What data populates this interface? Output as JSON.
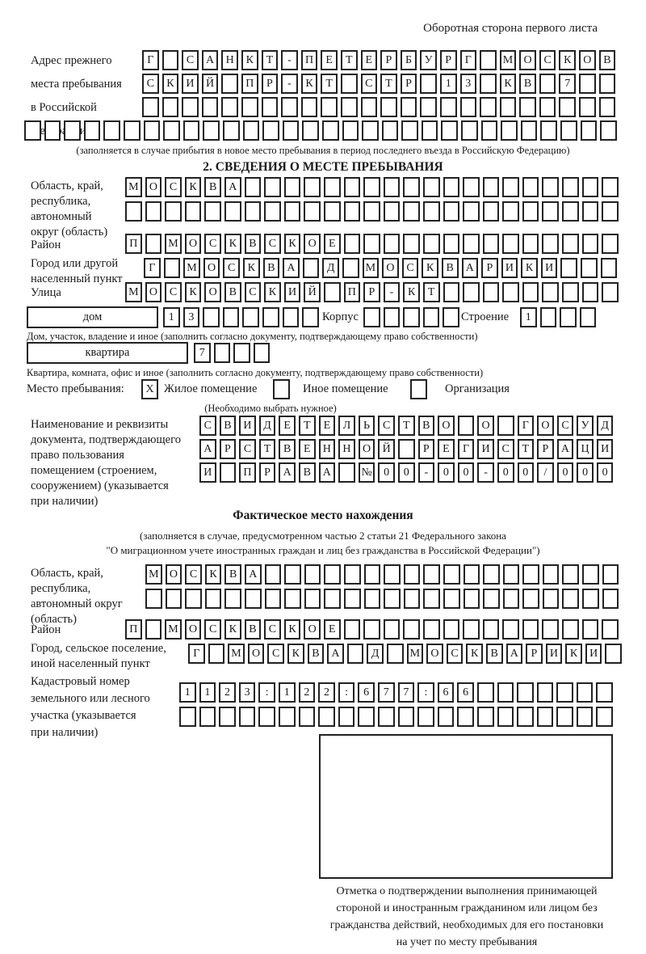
{
  "page": {
    "header_note": "Оборотная сторона первого листа"
  },
  "prev_address": {
    "label": [
      "Адрес прежнего",
      "места пребывания",
      "в Российской",
      "Федерации"
    ],
    "row1": [
      "Г",
      "",
      "С",
      "А",
      "Н",
      "К",
      "Т",
      "-",
      "П",
      "Е",
      "Т",
      "Е",
      "Р",
      "Б",
      "У",
      "Р",
      "Г",
      "",
      "М",
      "О",
      "С",
      "К",
      "О",
      "В"
    ],
    "row2": [
      "С",
      "К",
      "И",
      "Й",
      "",
      "П",
      "Р",
      "-",
      "К",
      "Т",
      "",
      "С",
      "Т",
      "Р",
      "",
      "1",
      "3",
      "",
      "К",
      "В",
      "",
      "7",
      "",
      ""
    ],
    "row3": [
      "",
      "",
      "",
      "",
      "",
      "",
      "",
      "",
      "",
      "",
      "",
      "",
      "",
      "",
      "",
      "",
      "",
      "",
      "",
      "",
      "",
      "",
      "",
      ""
    ],
    "row4": [
      "",
      "",
      "",
      "",
      "",
      "",
      "",
      "",
      "",
      "",
      "",
      "",
      "",
      "",
      "",
      "",
      "",
      "",
      "",
      "",
      "",
      "",
      "",
      "",
      "",
      "",
      "",
      "",
      "",
      ""
    ],
    "note": "(заполняется в случае прибытия в новое место пребывания в период последнего въезда в Российскую Федерацию)"
  },
  "section2": {
    "title": "2. СВЕДЕНИЯ О МЕСТЕ ПРЕБЫВАНИЯ",
    "region": {
      "label": [
        "Область, край,",
        "республика,",
        "автономный",
        "округ (область)"
      ],
      "row1": [
        "М",
        "О",
        "С",
        "К",
        "В",
        "А",
        "",
        "",
        "",
        "",
        "",
        "",
        "",
        "",
        "",
        "",
        "",
        "",
        "",
        "",
        "",
        "",
        "",
        "",
        ""
      ],
      "row2": [
        "",
        "",
        "",
        "",
        "",
        "",
        "",
        "",
        "",
        "",
        "",
        "",
        "",
        "",
        "",
        "",
        "",
        "",
        "",
        "",
        "",
        "",
        "",
        "",
        ""
      ]
    },
    "district": {
      "label": "Район",
      "row": [
        "П",
        "",
        "М",
        "О",
        "С",
        "К",
        "В",
        "С",
        "К",
        "О",
        "Е",
        "",
        "",
        "",
        "",
        "",
        "",
        "",
        "",
        "",
        "",
        "",
        "",
        "",
        ""
      ]
    },
    "city": {
      "label": [
        "Город или другой",
        "населенный пункт"
      ],
      "row": [
        "Г",
        "",
        "М",
        "О",
        "С",
        "К",
        "В",
        "А",
        "",
        "Д",
        "",
        "М",
        "О",
        "С",
        "К",
        "В",
        "А",
        "Р",
        "И",
        "К",
        "И",
        "",
        "",
        ""
      ]
    },
    "street": {
      "label": "Улица",
      "row": [
        "М",
        "О",
        "С",
        "К",
        "О",
        "В",
        "С",
        "К",
        "И",
        "Й",
        "",
        "П",
        "Р",
        "-",
        "К",
        "Т",
        "",
        "",
        "",
        "",
        "",
        "",
        "",
        "",
        ""
      ]
    },
    "house": {
      "box_label": "дом",
      "cells": [
        "1",
        "3",
        "",
        "",
        "",
        "",
        "",
        ""
      ],
      "korpus_label": "Корпус",
      "korpus_cells": [
        "",
        "",
        "",
        "",
        ""
      ],
      "stroenie_label": "Строение",
      "stroenie_cells": [
        "1",
        "",
        "",
        ""
      ]
    },
    "house_note": "Дом, участок, владение и иное (заполнить согласно документу, подтверждающему право собственности)",
    "apartment": {
      "box_label": "квартира",
      "cells": [
        "7",
        "",
        "",
        ""
      ]
    },
    "apartment_note": "Квартира, комната, офис и иное (заполнить согласно документу, подтверждающему право собственности)",
    "stay_type": {
      "label": "Место пребывания:",
      "options": [
        {
          "checked": "X",
          "label": "Жилое помещение"
        },
        {
          "checked": "",
          "label": "Иное помещение"
        },
        {
          "checked": "",
          "label": "Организация"
        }
      ],
      "note": "(Необходимо выбрать нужное)"
    },
    "doc": {
      "label": [
        "Наименование и реквизиты",
        "документа, подтверждающего",
        "право пользования",
        "помещением (строением,",
        "сооружением) (указывается",
        "при наличии)"
      ],
      "row1": [
        "С",
        "В",
        "И",
        "Д",
        "Е",
        "Т",
        "Е",
        "Л",
        "Ь",
        "С",
        "Т",
        "В",
        "О",
        "",
        "О",
        "",
        "Г",
        "О",
        "С",
        "У",
        "Д"
      ],
      "row2": [
        "А",
        "Р",
        "С",
        "Т",
        "В",
        "Е",
        "Н",
        "Н",
        "О",
        "Й",
        "",
        "Р",
        "Е",
        "Г",
        "И",
        "С",
        "Т",
        "Р",
        "А",
        "Ц",
        "И"
      ],
      "row3": [
        "И",
        "",
        "П",
        "Р",
        "А",
        "В",
        "А",
        "",
        "№",
        "0",
        "0",
        "-",
        "0",
        "0",
        "-",
        "0",
        "0",
        "/",
        "0",
        "0",
        "0"
      ]
    }
  },
  "actual_location": {
    "title": "Фактическое место нахождения",
    "note1": "(заполняется в случае, предусмотренном частью 2 статьи 21 Федерального закона",
    "note2": "\"О миграционном учете иностранных граждан и лиц без гражданства в Российской Федерации\")",
    "region": {
      "label": [
        "Область, край,",
        "республика,",
        "автономный округ",
        "(область)"
      ],
      "row1": [
        "М",
        "О",
        "С",
        "К",
        "В",
        "А",
        "",
        "",
        "",
        "",
        "",
        "",
        "",
        "",
        "",
        "",
        "",
        "",
        "",
        "",
        "",
        "",
        "",
        ""
      ],
      "row2": [
        "",
        "",
        "",
        "",
        "",
        "",
        "",
        "",
        "",
        "",
        "",
        "",
        "",
        "",
        "",
        "",
        "",
        "",
        "",
        "",
        "",
        "",
        "",
        ""
      ]
    },
    "district": {
      "label": "Район",
      "row": [
        "П",
        "",
        "М",
        "О",
        "С",
        "К",
        "В",
        "С",
        "К",
        "О",
        "Е",
        "",
        "",
        "",
        "",
        "",
        "",
        "",
        "",
        "",
        "",
        "",
        "",
        "",
        ""
      ]
    },
    "city": {
      "label": [
        "Город, сельское поселение,",
        "иной населенный пункт"
      ],
      "row": [
        "Г",
        "",
        "М",
        "О",
        "С",
        "К",
        "В",
        "А",
        "",
        "Д",
        "",
        "М",
        "О",
        "С",
        "К",
        "В",
        "А",
        "Р",
        "И",
        "К",
        "И",
        ""
      ]
    },
    "cadastre": {
      "label": [
        "Кадастровый номер",
        "земельного или лесного",
        "участка (указывается",
        "при наличии)"
      ],
      "row1": [
        "1",
        "1",
        "2",
        "3",
        ":",
        "1",
        "2",
        "2",
        ":",
        "6",
        "7",
        "7",
        ":",
        "6",
        "6",
        "",
        "",
        "",
        "",
        "",
        "",
        ""
      ],
      "row2": [
        "",
        "",
        "",
        "",
        "",
        "",
        "",
        "",
        "",
        "",
        "",
        "",
        "",
        "",
        "",
        "",
        "",
        "",
        "",
        "",
        "",
        ""
      ]
    },
    "stamp_caption": [
      "Отметка о подтверждении выполнения принимающей",
      "стороной и иностранным гражданином или лицом без",
      "гражданства действий, необходимых для его постановки",
      "на учет по месту пребывания"
    ]
  }
}
